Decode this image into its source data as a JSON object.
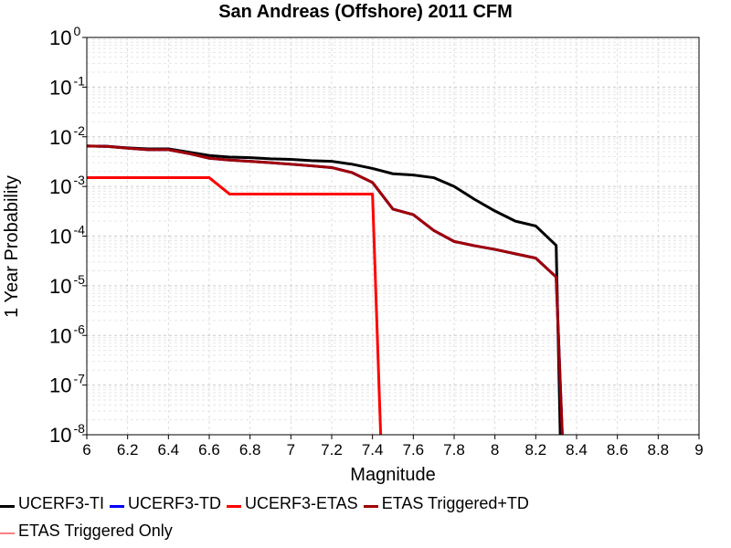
{
  "chart_data": {
    "type": "line",
    "title": "San Andreas (Offshore) 2011 CFM",
    "xlabel": "Magnitude",
    "ylabel": "1 Year Probability",
    "xlim": [
      6,
      9
    ],
    "ylim_log10": [
      -8,
      0
    ],
    "y_scale": "log",
    "grid": true,
    "x_ticks": [
      "6",
      "6.2",
      "6.4",
      "6.6",
      "6.8",
      "7",
      "7.2",
      "7.4",
      "7.6",
      "7.8",
      "8",
      "8.2",
      "8.4",
      "8.6",
      "8.8",
      "9"
    ],
    "y_tick_exponents": [
      "0",
      "-1",
      "-2",
      "-3",
      "-4",
      "-5",
      "-6",
      "-7",
      "-8"
    ],
    "legend_position": "bottom",
    "series": [
      {
        "name": "UCERF3-TI",
        "color": "#000000",
        "points": [
          [
            6.0,
            0.0065
          ],
          [
            6.1,
            0.0064
          ],
          [
            6.2,
            0.006
          ],
          [
            6.3,
            0.0057
          ],
          [
            6.4,
            0.0057
          ],
          [
            6.5,
            0.0049
          ],
          [
            6.6,
            0.0042
          ],
          [
            6.7,
            0.0039
          ],
          [
            6.8,
            0.0038
          ],
          [
            6.9,
            0.0036
          ],
          [
            7.0,
            0.0035
          ],
          [
            7.1,
            0.0033
          ],
          [
            7.2,
            0.0032
          ],
          [
            7.3,
            0.0028
          ],
          [
            7.4,
            0.0023
          ],
          [
            7.5,
            0.0018
          ],
          [
            7.6,
            0.0017
          ],
          [
            7.7,
            0.0015
          ],
          [
            7.8,
            0.001
          ],
          [
            7.9,
            0.00055
          ],
          [
            8.0,
            0.00032
          ],
          [
            8.1,
            0.0002
          ],
          [
            8.2,
            0.00016
          ],
          [
            8.3,
            6.5e-05
          ],
          [
            8.32,
            1e-08
          ]
        ]
      },
      {
        "name": "UCERF3-TD",
        "color": "#0000ff",
        "points": [
          [
            6.0,
            0.0065
          ],
          [
            6.1,
            0.0064
          ],
          [
            6.2,
            0.0059
          ],
          [
            6.3,
            0.0055
          ],
          [
            6.4,
            0.0055
          ],
          [
            6.5,
            0.0046
          ],
          [
            6.6,
            0.0037
          ],
          [
            6.7,
            0.0034
          ],
          [
            6.8,
            0.0032
          ],
          [
            6.9,
            0.003
          ],
          [
            7.0,
            0.0028
          ],
          [
            7.1,
            0.0026
          ],
          [
            7.2,
            0.0024
          ],
          [
            7.3,
            0.0019
          ],
          [
            7.4,
            0.0012
          ],
          [
            7.5,
            0.00035
          ],
          [
            7.6,
            0.00027
          ],
          [
            7.7,
            0.00013
          ],
          [
            7.8,
            7.8e-05
          ],
          [
            7.9,
            6.4e-05
          ],
          [
            8.0,
            5.4e-05
          ],
          [
            8.1,
            4.4e-05
          ],
          [
            8.2,
            3.6e-05
          ],
          [
            8.3,
            1.5e-05
          ],
          [
            8.33,
            1e-08
          ]
        ]
      },
      {
        "name": "UCERF3-ETAS",
        "color": "#ff0000",
        "points": [
          [
            6.0,
            0.0015
          ],
          [
            6.6,
            0.0015
          ],
          [
            6.7,
            0.0007
          ],
          [
            7.4,
            0.0007
          ],
          [
            7.44,
            1e-08
          ]
        ]
      },
      {
        "name": "ETAS Triggered+TD",
        "color": "#a00000",
        "points": [
          [
            6.0,
            0.0065
          ],
          [
            6.1,
            0.0064
          ],
          [
            6.2,
            0.0059
          ],
          [
            6.3,
            0.0055
          ],
          [
            6.4,
            0.0055
          ],
          [
            6.5,
            0.0046
          ],
          [
            6.6,
            0.0037
          ],
          [
            6.7,
            0.0034
          ],
          [
            6.8,
            0.0032
          ],
          [
            6.9,
            0.003
          ],
          [
            7.0,
            0.0028
          ],
          [
            7.1,
            0.0026
          ],
          [
            7.2,
            0.0024
          ],
          [
            7.3,
            0.0019
          ],
          [
            7.4,
            0.0012
          ],
          [
            7.5,
            0.00035
          ],
          [
            7.6,
            0.00027
          ],
          [
            7.7,
            0.00013
          ],
          [
            7.8,
            7.8e-05
          ],
          [
            7.9,
            6.4e-05
          ],
          [
            8.0,
            5.4e-05
          ],
          [
            8.1,
            4.4e-05
          ],
          [
            8.2,
            3.6e-05
          ],
          [
            8.3,
            1.5e-05
          ],
          [
            8.33,
            1e-08
          ]
        ]
      },
      {
        "name": "ETAS Triggered Only",
        "color": "#ff8080",
        "points": []
      }
    ]
  }
}
